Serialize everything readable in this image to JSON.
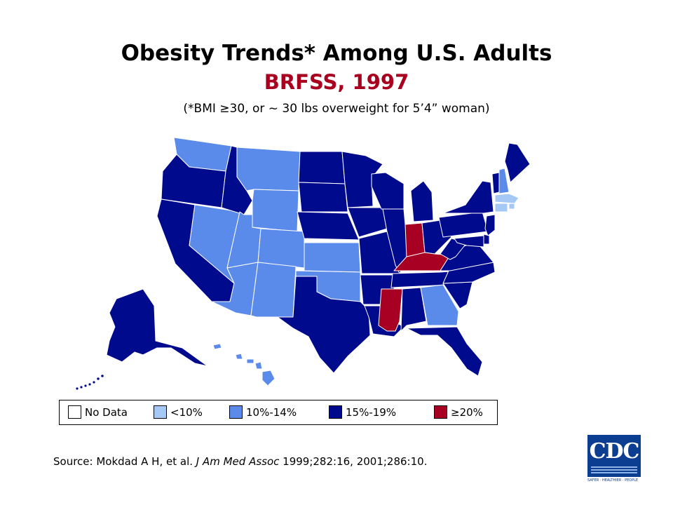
{
  "header": {
    "title": "Obesity Trends* Among U.S. Adults",
    "subtitle": "BRFSS, 1997",
    "note": "(*BMI ≥30, or ~ 30 lbs overweight for 5’4” woman)"
  },
  "colors": {
    "no_data": "#ffffff",
    "lt10": "#a6c8f4",
    "10_14": "#5b8bea",
    "15_19": "#000a8c",
    "ge20": "#a80023",
    "title": "#000000",
    "subtitle": "#a8001e"
  },
  "legend": [
    {
      "key": "no_data",
      "label": "No Data"
    },
    {
      "key": "lt10",
      "label": "<10%"
    },
    {
      "key": "10_14",
      "label": "10%-14%"
    },
    {
      "key": "15_19",
      "label": "15%-19%"
    },
    {
      "key": "ge20",
      "label": "≥20%"
    }
  ],
  "states": {
    "WA": "10_14",
    "OR": "15_19",
    "CA": "15_19",
    "NV": "10_14",
    "ID": "15_19",
    "MT": "10_14",
    "WY": "10_14",
    "UT": "10_14",
    "AZ": "10_14",
    "CO": "10_14",
    "NM": "10_14",
    "ND": "15_19",
    "SD": "15_19",
    "NE": "15_19",
    "KS": "10_14",
    "OK": "10_14",
    "TX": "15_19",
    "MN": "15_19",
    "IA": "15_19",
    "MO": "15_19",
    "AR": "15_19",
    "LA": "15_19",
    "WI": "15_19",
    "IL": "15_19",
    "MI": "15_19",
    "IN": "ge20",
    "KY": "ge20",
    "TN": "15_19",
    "MS": "ge20",
    "AL": "15_19",
    "GA": "10_14",
    "FL": "15_19",
    "SC": "15_19",
    "NC": "15_19",
    "VA": "15_19",
    "WV": "15_19",
    "OH": "15_19",
    "PA": "15_19",
    "NY": "15_19",
    "VT": "15_19",
    "NH": "10_14",
    "ME": "15_19",
    "MA": "lt10",
    "CT": "lt10",
    "RI": "lt10",
    "NJ": "15_19",
    "DE": "15_19",
    "MD": "15_19",
    "AK": "15_19",
    "HI": "10_14"
  },
  "source": {
    "prefix": "Source: Mokdad A H, et al. ",
    "journal": "J Am Med Assoc",
    "suffix": " 1999;282:16, 2001;286:10."
  },
  "logo": {
    "text": "CDC",
    "tagline": "SAFER · HEALTHIER · PEOPLE"
  }
}
